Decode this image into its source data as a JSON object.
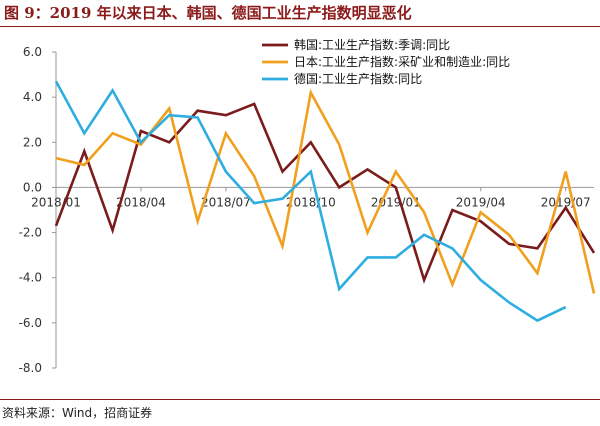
{
  "title": "图 9：2019 年以来日本、韩国、德国工业生产指数明显恶化",
  "source": "资料来源：Wind，招商证券",
  "chart_data": {
    "type": "line",
    "title": "图 9：2019 年以来日本、韩国、德国工业生产指数明显恶化",
    "x": [
      "2018/01",
      "2018/02",
      "2018/03",
      "2018/04",
      "2018/05",
      "2018/06",
      "2018/07",
      "2018/08",
      "2018/09",
      "2018/10",
      "2018/11",
      "2018/12",
      "2019/01",
      "2019/02",
      "2019/03",
      "2019/04",
      "2019/05",
      "2019/06",
      "2019/07",
      "2019/08"
    ],
    "x_tick_labels": [
      "2018/01",
      "2018/04",
      "2018/07",
      "2018/10",
      "2019/01",
      "2019/04",
      "2019/07"
    ],
    "y_tick_labels": [
      "6.0",
      "4.0",
      "2.0",
      "0.0",
      "-2.0",
      "-4.0",
      "-6.0",
      "-8.0"
    ],
    "ylim": [
      -8,
      6
    ],
    "y_ticks": [
      6,
      4,
      2,
      0,
      -2,
      -4,
      -6,
      -8
    ],
    "xlabel": "",
    "ylabel": "",
    "grid": false,
    "legend_position": "top-right",
    "series": [
      {
        "name": "韩国:工业生产指数:季调:同比",
        "color": "#7b1c1c",
        "values": [
          -1.7,
          1.6,
          -1.9,
          2.5,
          2.0,
          3.4,
          3.2,
          3.7,
          0.7,
          2.0,
          0.0,
          0.8,
          0.0,
          -4.1,
          -1.0,
          -1.5,
          -2.5,
          -2.7,
          -0.9,
          -2.9
        ]
      },
      {
        "name": "日本:工业生产指数:采矿业和制造业:同比",
        "color": "#f0a01e",
        "values": [
          1.3,
          1.0,
          2.4,
          1.9,
          3.5,
          -1.5,
          2.4,
          0.5,
          -2.6,
          4.2,
          1.9,
          -2.0,
          0.7,
          -1.1,
          -4.3,
          -1.1,
          -2.1,
          -3.8,
          0.7,
          -4.7
        ]
      },
      {
        "name": "德国:工业生产指数:同比",
        "color": "#2eaee0",
        "values": [
          4.7,
          2.4,
          4.3,
          2.0,
          3.2,
          3.1,
          0.7,
          -0.7,
          -0.5,
          0.7,
          -4.5,
          -3.1,
          -3.1,
          -2.1,
          -2.7,
          -4.1,
          -5.1,
          -5.9,
          -5.3,
          null
        ]
      }
    ]
  }
}
